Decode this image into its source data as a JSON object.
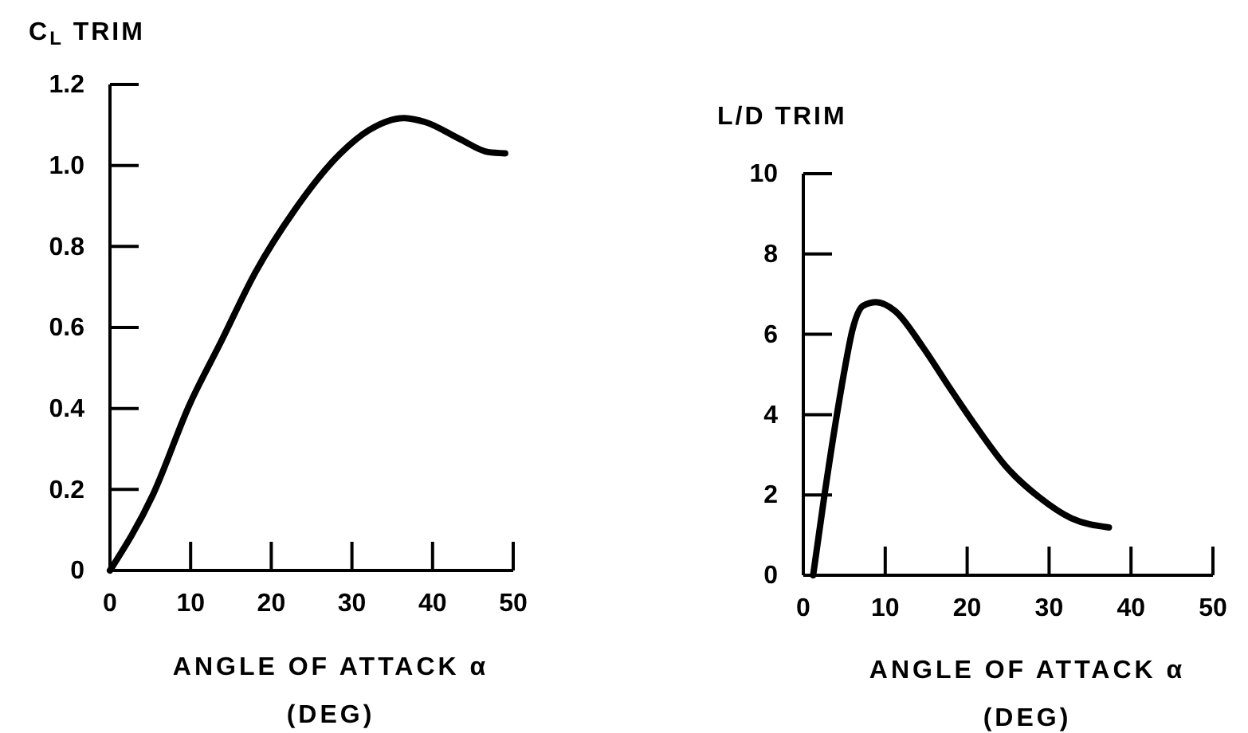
{
  "chart_data": [
    {
      "type": "line",
      "ylabel": "C$_{L}$ TRIM",
      "xlabel": "ANGLE OF ATTACK α\n(DEG)",
      "xlim": [
        0,
        50
      ],
      "xticks": [
        0,
        10,
        20,
        30,
        40,
        50
      ],
      "ylim": [
        0,
        1.2
      ],
      "yticks": [
        0,
        {
          "value": 0.2,
          "label": "0.2"
        },
        {
          "value": 0.4,
          "label": "0.4"
        },
        {
          "value": 0.6,
          "label": "0.6"
        },
        {
          "value": 0.8,
          "label": "0.8"
        },
        {
          "value": 1.0,
          "label": "1.0"
        },
        {
          "value": 1.2,
          "label": "1.2"
        }
      ],
      "series": [
        {
          "color": "#000000",
          "x": [
            0,
            5.3,
            9.9,
            13.8,
            18.0,
            22.9,
            28.6,
            32.1,
            36.4,
            39.1,
            43.4,
            46.9,
            49.0
          ],
          "values": [
            0,
            0.186,
            0.411,
            0.566,
            0.735,
            0.89,
            1.03,
            1.087,
            1.117,
            1.107,
            1.065,
            1.033,
            1.03
          ]
        }
      ]
    },
    {
      "type": "line",
      "ylabel": "L/D TRIM",
      "xlabel": "ANGLE OF ATTACK α\n(DEG)",
      "xlim": [
        0,
        50
      ],
      "xticks": [
        0,
        10,
        20,
        30,
        40,
        50
      ],
      "ylim": [
        0,
        10
      ],
      "yticks": [
        0,
        2,
        4,
        6,
        8,
        10
      ],
      "series": [
        {
          "color": "#000000",
          "x": [
            1.2,
            2.5,
            4.1,
            5.1,
            6.0,
            7.3,
            8.9,
            11.2,
            14.5,
            17.7,
            21.0,
            24.9,
            28.8,
            32.7,
            37.3
          ],
          "values": [
            0,
            1.88,
            4.0,
            5.19,
            6.11,
            6.71,
            6.8,
            6.58,
            5.71,
            4.72,
            3.73,
            2.67,
            1.94,
            1.42,
            1.19
          ]
        }
      ]
    }
  ]
}
